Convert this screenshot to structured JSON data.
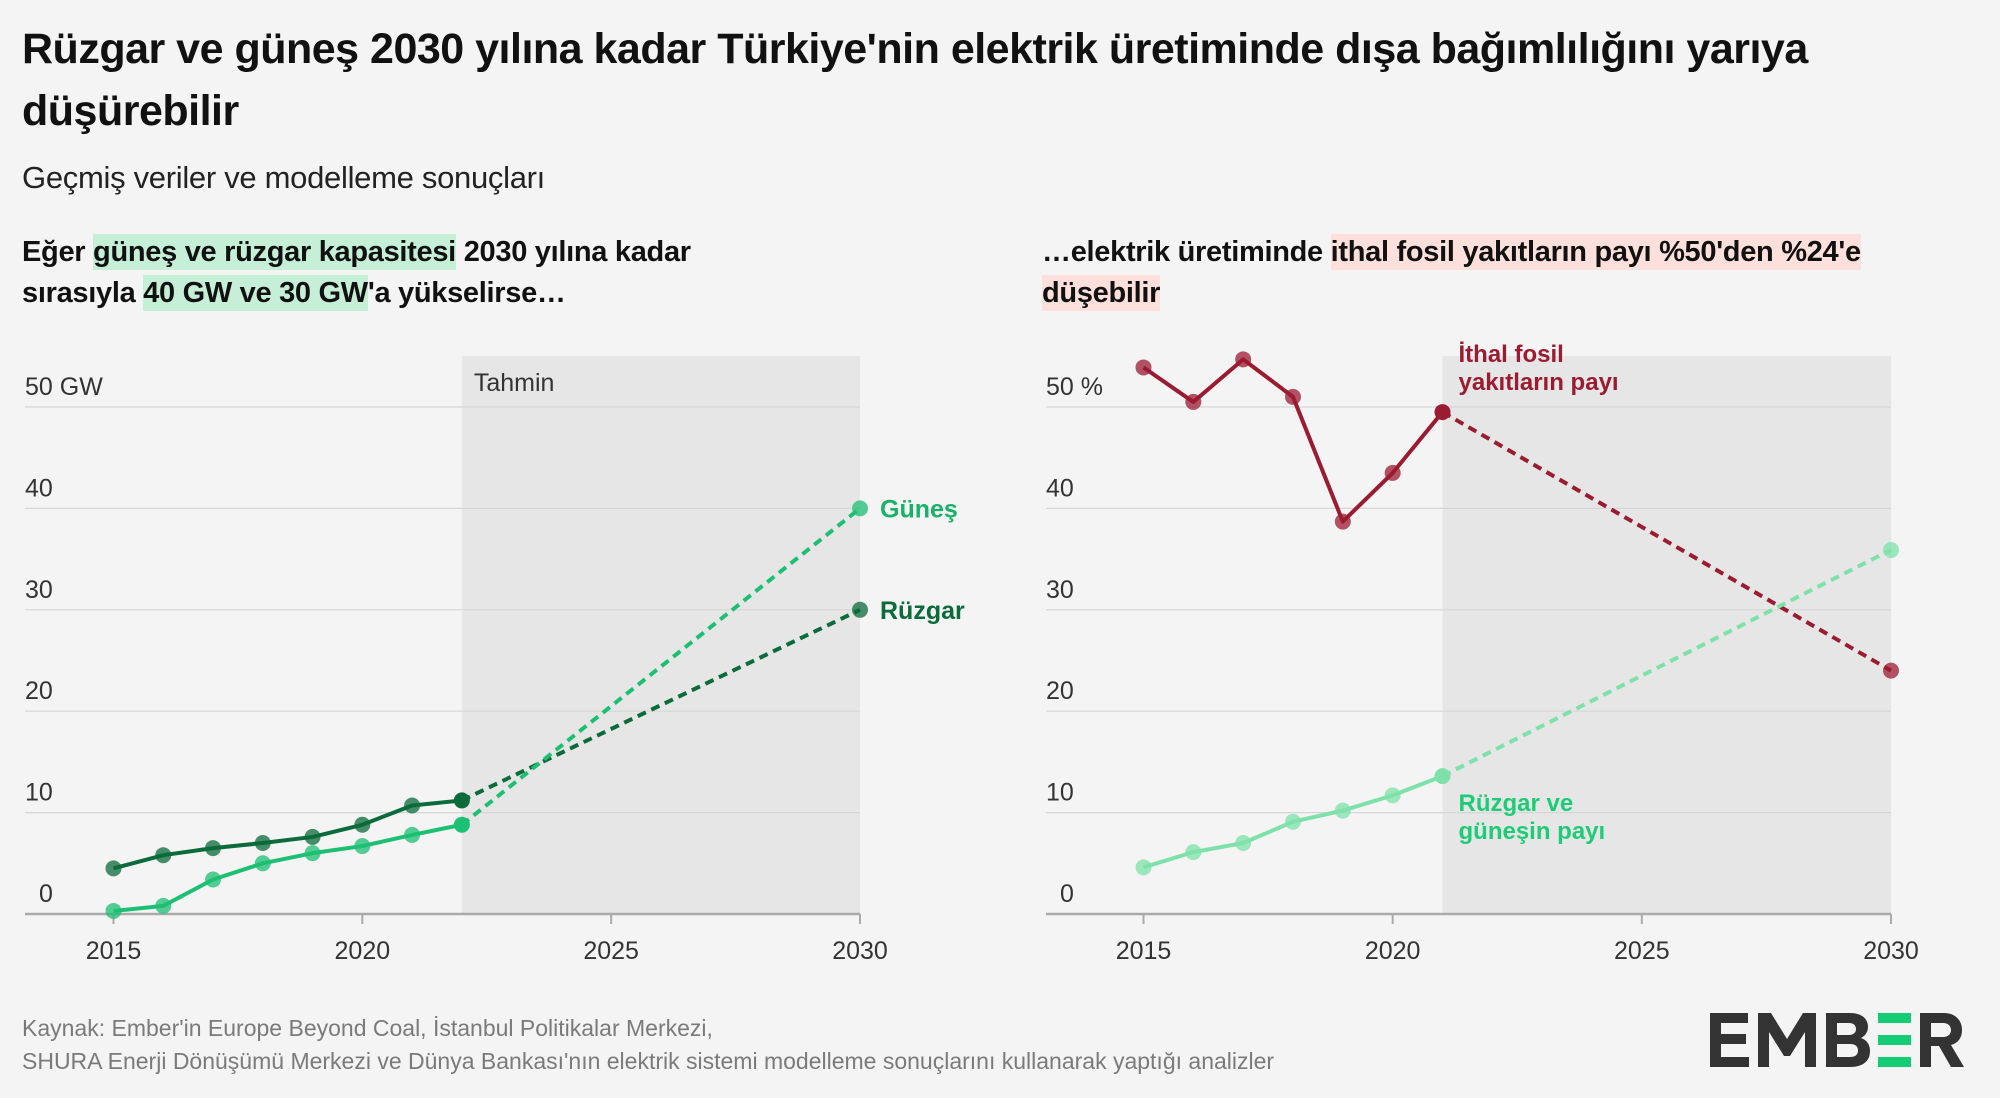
{
  "title": "Rüzgar ve güneş 2030 yılına kadar Türkiye'nin elektrik üretiminde dışa bağımlılığını yarıya düşürebilir",
  "subtitle": "Geçmiş veriler ve modelleme sonuçları",
  "left_heading": {
    "pre": "Eğer ",
    "hl1": "güneş ve rüzgar kapasitesi",
    "mid": " 2030 yılına kadar sırasıyla ",
    "hl2": "40 GW ve 30 GW",
    "post": "'a yükselirse…"
  },
  "right_heading": {
    "pre": "…elektrik üretiminde ",
    "hl": "ithal fosil yakıtların payı %50'den %24'e düşebilir"
  },
  "source": {
    "line1": "Kaynak: Ember'in Europe Beyond Coal, İstanbul Politikalar Merkezi,",
    "line2": "SHURA Enerji Dönüşümü Merkezi ve Dünya Bankası'nın elektrik sistemi modelleme sonuçlarını kullanarak yaptığı analizler"
  },
  "logo": {
    "text": "EMBER",
    "accent": "#14cc74",
    "color": "#333333"
  },
  "colors": {
    "background": "#f4f4f4",
    "forecast_shade": "#e6e6e6",
    "highlight_green": "#c6efd8",
    "highlight_red": "#fde0db"
  },
  "chart_data": [
    {
      "type": "line",
      "x_ticks": [
        2015,
        2020,
        2025,
        2030
      ],
      "y_ticks": [
        "0",
        "10",
        "20",
        "30",
        "40",
        "50 GW"
      ],
      "ylim": [
        0,
        50
      ],
      "xlim": [
        2014.2,
        2030
      ],
      "grid": true,
      "forecast_label": "Tahmin",
      "forecast_start": 2022,
      "series": [
        {
          "name": "Rüzgar",
          "color": "#0b6b3a",
          "label_color": "#0b6b3a",
          "x": [
            2015,
            2016,
            2017,
            2018,
            2019,
            2020,
            2021,
            2022,
            2030
          ],
          "values": [
            4.5,
            5.8,
            6.5,
            7.0,
            7.6,
            8.8,
            10.7,
            11.2,
            30
          ]
        },
        {
          "name": "Güneş",
          "color": "#1dbf73",
          "label_color": "#18b368",
          "x": [
            2015,
            2016,
            2017,
            2018,
            2019,
            2020,
            2021,
            2022,
            2030
          ],
          "values": [
            0.3,
            0.8,
            3.4,
            5.0,
            6.0,
            6.7,
            7.8,
            8.8,
            40
          ]
        }
      ]
    },
    {
      "type": "line",
      "x_ticks": [
        2015,
        2020,
        2025,
        2030
      ],
      "y_ticks": [
        "0",
        "10",
        "20",
        "30",
        "40",
        "50 %"
      ],
      "ylim": [
        0,
        50
      ],
      "xlim": [
        2013.3,
        2030
      ],
      "grid": true,
      "forecast_start": 2021,
      "series": [
        {
          "name": "İthal fosil yakıtların payı",
          "color": "#9b1b30",
          "label_color": "#9b1b30",
          "x": [
            2015,
            2016,
            2017,
            2018,
            2019,
            2020,
            2021,
            2030
          ],
          "values": [
            53.9,
            50.5,
            54.7,
            51.0,
            38.7,
            43.5,
            49.5,
            24.0
          ]
        },
        {
          "name": "Rüzgar ve güneşin payı",
          "color": "#7fe1aa",
          "label_color": "#1ecc78",
          "x": [
            2015,
            2016,
            2017,
            2018,
            2019,
            2020,
            2021,
            2030
          ],
          "values": [
            4.6,
            6.1,
            7.0,
            9.1,
            10.2,
            11.7,
            13.6,
            35.9
          ]
        }
      ]
    }
  ]
}
